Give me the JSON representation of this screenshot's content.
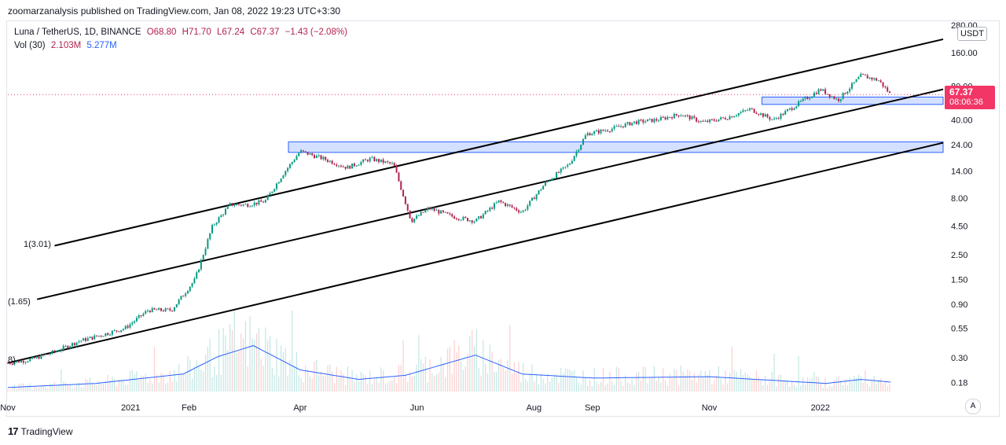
{
  "header": {
    "published": "zoomarzanalysis published on TradingView.com, Jan 08, 2022 19:23 UTC+3:30"
  },
  "legend": {
    "symbol": "Luna / TetherUS, 1D, BINANCE",
    "open": "O68.80",
    "high": "H71.70",
    "low": "L67.24",
    "close": "C67.37",
    "change": "−1.43 (−2.08%)",
    "vol_label": "Vol (30)",
    "vol_value": "2.103M",
    "vol_ma": "5.277M"
  },
  "price_box": {
    "price": "67.37",
    "countdown": "08:06:36"
  },
  "currency_button": "USDT",
  "auto_button": "A",
  "footer": {
    "brand": "TradingView"
  },
  "channel_labels": [
    "1(3.01)",
    "(1.65)",
    "8)"
  ],
  "colors": {
    "up": "#26a69a",
    "down": "#ef5350",
    "candle_up": "#089981",
    "candle_down": "#b2224d",
    "zone": "#2962ff",
    "vol_ma": "#2962ff"
  },
  "chart_data": {
    "type": "candlestick",
    "title": "Luna / TetherUS, 1D, BINANCE",
    "scale": "log",
    "ylim": [
      0.15,
      290
    ],
    "y_ticks": [
      "280.00",
      "160.00",
      "80.00",
      "40.00",
      "24.00",
      "14.00",
      "8.00",
      "4.50",
      "2.50",
      "1.50",
      "0.90",
      "0.55",
      "0.30",
      "0.18"
    ],
    "x_ticks": [
      "Nov",
      "2021",
      "Feb",
      "Apr",
      "Jun",
      "Aug",
      "Sep",
      "Nov",
      "2022"
    ],
    "last_price": 67.37,
    "price_path": [
      {
        "t": 0,
        "v": 0.27
      },
      {
        "t": 4,
        "v": 0.29
      },
      {
        "t": 8,
        "v": 0.34
      },
      {
        "t": 12,
        "v": 0.42
      },
      {
        "t": 16,
        "v": 0.48
      },
      {
        "t": 20,
        "v": 0.55
      },
      {
        "t": 24,
        "v": 0.8
      },
      {
        "t": 28,
        "v": 0.8
      },
      {
        "t": 32,
        "v": 1.5
      },
      {
        "t": 35,
        "v": 4.5
      },
      {
        "t": 38,
        "v": 7.0
      },
      {
        "t": 41,
        "v": 7.0
      },
      {
        "t": 44,
        "v": 7.5
      },
      {
        "t": 47,
        "v": 13.0
      },
      {
        "t": 50,
        "v": 21.0
      },
      {
        "t": 54,
        "v": 18.0
      },
      {
        "t": 58,
        "v": 15.0
      },
      {
        "t": 62,
        "v": 18.0
      },
      {
        "t": 66,
        "v": 16.0
      },
      {
        "t": 69,
        "v": 5.0
      },
      {
        "t": 72,
        "v": 6.5
      },
      {
        "t": 76,
        "v": 5.5
      },
      {
        "t": 80,
        "v": 5.0
      },
      {
        "t": 84,
        "v": 7.5
      },
      {
        "t": 88,
        "v": 6.0
      },
      {
        "t": 92,
        "v": 11.0
      },
      {
        "t": 96,
        "v": 16.0
      },
      {
        "t": 99,
        "v": 30.0
      },
      {
        "t": 103,
        "v": 33.0
      },
      {
        "t": 107,
        "v": 38.0
      },
      {
        "t": 111,
        "v": 40.0
      },
      {
        "t": 115,
        "v": 45.0
      },
      {
        "t": 119,
        "v": 38.0
      },
      {
        "t": 123,
        "v": 42.0
      },
      {
        "t": 127,
        "v": 50.0
      },
      {
        "t": 131,
        "v": 40.0
      },
      {
        "t": 135,
        "v": 55.0
      },
      {
        "t": 139,
        "v": 75.0
      },
      {
        "t": 142,
        "v": 60.0
      },
      {
        "t": 146,
        "v": 100.0
      },
      {
        "t": 149,
        "v": 90.0
      },
      {
        "t": 151,
        "v": 67.37
      }
    ],
    "channel_lines": [
      {
        "name": "upper",
        "from": {
          "t": 8,
          "v": 3.01
        },
        "to": {
          "t": 160,
          "v": 210
        }
      },
      {
        "name": "middle",
        "from": {
          "t": 5,
          "v": 1.0
        },
        "to": {
          "t": 160,
          "v": 75
        }
      },
      {
        "name": "lower",
        "from": {
          "t": 0,
          "v": 0.27
        },
        "to": {
          "t": 160,
          "v": 25
        }
      }
    ],
    "zones": [
      {
        "t0": 48,
        "t1": 160,
        "low": 20.5,
        "high": 25.5
      },
      {
        "t0": 129,
        "t1": 160,
        "low": 55,
        "high": 64
      }
    ],
    "volume_ma": [
      {
        "t": 0,
        "v": 0.3
      },
      {
        "t": 15,
        "v": 0.6
      },
      {
        "t": 30,
        "v": 1.3
      },
      {
        "t": 36,
        "v": 2.6
      },
      {
        "t": 42,
        "v": 3.4
      },
      {
        "t": 50,
        "v": 1.6
      },
      {
        "t": 60,
        "v": 0.9
      },
      {
        "t": 68,
        "v": 1.2
      },
      {
        "t": 80,
        "v": 2.7
      },
      {
        "t": 88,
        "v": 1.3
      },
      {
        "t": 100,
        "v": 1.0
      },
      {
        "t": 120,
        "v": 1.1
      },
      {
        "t": 140,
        "v": 0.6
      },
      {
        "t": 146,
        "v": 0.9
      },
      {
        "t": 151,
        "v": 0.7
      }
    ],
    "volume_max": 6
  }
}
